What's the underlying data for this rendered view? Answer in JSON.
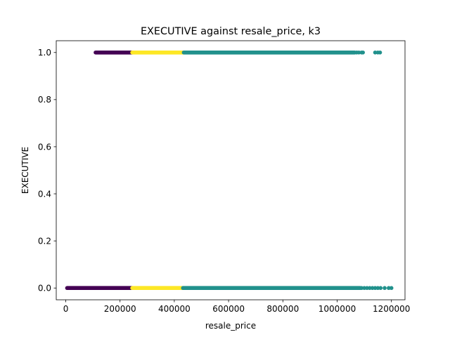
{
  "chart_data": {
    "type": "scatter",
    "title": "EXECUTIVE against resale_price, k3",
    "xlabel": "resale_price",
    "ylabel": "EXECUTIVE",
    "xlim": [
      -35000,
      1250000
    ],
    "ylim": [
      -0.05,
      1.05
    ],
    "x_ticks": [
      0,
      200000,
      400000,
      600000,
      800000,
      1000000,
      1200000
    ],
    "x_tick_labels": [
      "0",
      "200000",
      "400000",
      "600000",
      "800000",
      "1000000",
      "1200000"
    ],
    "y_ticks": [
      0.0,
      0.2,
      0.4,
      0.6,
      0.8,
      1.0
    ],
    "y_tick_labels": [
      "0.0",
      "0.2",
      "0.4",
      "0.6",
      "0.8",
      "1.0"
    ],
    "grid": false,
    "colors": {
      "cluster_purple": "#440154",
      "cluster_teal": "#21918c",
      "cluster_yellow": "#fde725"
    },
    "series": [
      {
        "color": "#440154",
        "segments": [
          {
            "y": 0,
            "x_range": [
              5000,
              245000
            ]
          },
          {
            "y": 1,
            "x_range": [
              110000,
              245000
            ]
          }
        ]
      },
      {
        "color": "#fde725",
        "segments": [
          {
            "y": 0,
            "x_range": [
              245000,
              432000
            ]
          },
          {
            "y": 1,
            "x_range": [
              245000,
              435000
            ]
          }
        ]
      },
      {
        "color": "#21918c",
        "segments": [
          {
            "y": 0,
            "x_range": [
              432000,
              1085000
            ]
          },
          {
            "y": 1,
            "x_range": [
              435000,
              1065000
            ]
          }
        ],
        "sparse_points": [
          {
            "y": 0,
            "x": [
              1090000,
              1100000,
              1110000,
              1120000,
              1130000,
              1140000,
              1150000,
              1160000,
              1175000,
              1190000,
              1200000
            ]
          },
          {
            "y": 1,
            "x": [
              1072000,
              1080000,
              1090000,
              1095000,
              1140000,
              1150000,
              1158000
            ]
          }
        ]
      }
    ]
  }
}
